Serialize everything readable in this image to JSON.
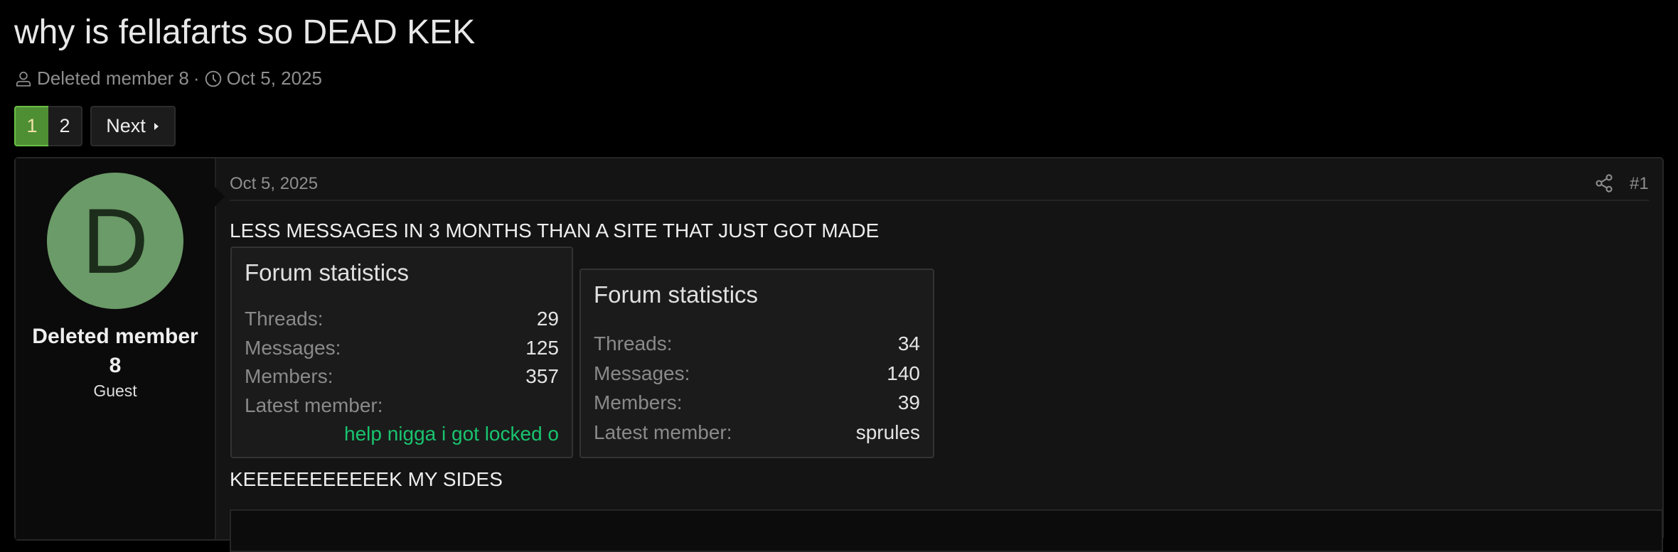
{
  "thread": {
    "title": "why is fellafarts so DEAD KEK",
    "author": "Deleted member 8",
    "separator": "·",
    "date": "Oct 5, 2025"
  },
  "pagination": {
    "pages": [
      "1",
      "2"
    ],
    "current": "1",
    "next_label": "Next"
  },
  "post": {
    "author_initial": "D",
    "author_name_line1": "Deleted member",
    "author_name_line2": "8",
    "author_role": "Guest",
    "avatar_color": "#6b9b68",
    "date": "Oct 5, 2025",
    "number": "#1",
    "text_before": "LESS MESSAGES IN 3 MONTHS THAN A SITE THAT JUST GOT MADE",
    "text_after": "KEEEEEEEEEEEK MY SIDES",
    "images": [
      {
        "title": "Forum statistics",
        "rows": [
          {
            "label": "Threads:",
            "value": "29"
          },
          {
            "label": "Messages:",
            "value": "125"
          },
          {
            "label": "Members:",
            "value": "357"
          },
          {
            "label": "Latest member:",
            "value": ""
          }
        ],
        "latest_member": "help nigga i got locked o"
      },
      {
        "title": "Forum statistics",
        "rows": [
          {
            "label": "Threads:",
            "value": "34"
          },
          {
            "label": "Messages:",
            "value": "140"
          },
          {
            "label": "Members:",
            "value": "39"
          },
          {
            "label": "Latest member:",
            "value": "sprules"
          }
        ]
      }
    ]
  },
  "colors": {
    "accent": "#4f8f34",
    "latest_member_link": "#19c36f",
    "background": "#000000"
  }
}
